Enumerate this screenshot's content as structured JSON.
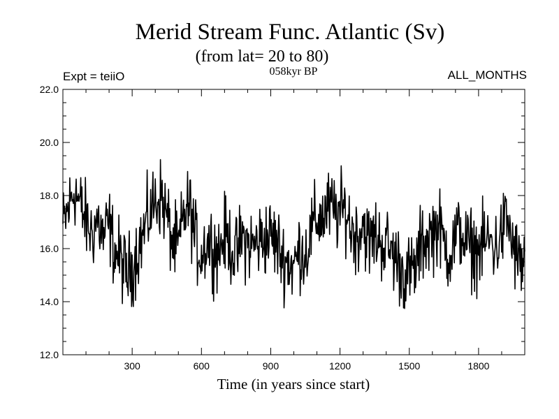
{
  "chart_data": {
    "type": "line",
    "title": "Merid Stream Func. Atlantic (Sv)",
    "subtitle": "(from lat= 20 to 80)",
    "annotations": {
      "left": "Expt = teiiO",
      "center": "058kyr BP",
      "right": "ALL_MONTHS"
    },
    "xlabel": "Time (in years since start)",
    "ylabel": "",
    "xlim": [
      0,
      2000
    ],
    "ylim": [
      12.0,
      22.0
    ],
    "xticks": [
      300,
      600,
      900,
      1200,
      1500,
      1800
    ],
    "xtick_labels": [
      "300",
      "600",
      "900",
      "1200",
      "1500",
      "1800"
    ],
    "yticks": [
      12.0,
      14.0,
      16.0,
      18.0,
      20.0,
      22.0
    ],
    "ytick_labels": [
      "12.0",
      "14.0",
      "16.0",
      "18.0",
      "20.0",
      "22.0"
    ],
    "grid": false,
    "line_color": "#000000",
    "series": [
      {
        "x": [
          0,
          25,
          50,
          75,
          100,
          125,
          150,
          175,
          200,
          225,
          250,
          275,
          300,
          325,
          350,
          375,
          400,
          425,
          450,
          475,
          500,
          525,
          550,
          575,
          600,
          625,
          650,
          675,
          700,
          725,
          750,
          775,
          800,
          825,
          850,
          875,
          900,
          925,
          950,
          975,
          1000,
          1025,
          1050,
          1075,
          1100,
          1125,
          1150,
          1175,
          1200,
          1225,
          1250,
          1275,
          1300,
          1325,
          1350,
          1375,
          1400,
          1425,
          1450,
          1475,
          1500,
          1525,
          1550,
          1575,
          1600,
          1625,
          1650,
          1675,
          1700,
          1725,
          1750,
          1775,
          1800,
          1825,
          1850,
          1875,
          1900,
          1925,
          1950,
          1975,
          2000
        ],
        "values": [
          16.8,
          17.5,
          18.3,
          17.6,
          17.0,
          16.6,
          17.1,
          16.4,
          16.9,
          15.9,
          15.6,
          15.0,
          15.3,
          16.0,
          16.6,
          17.3,
          17.8,
          18.0,
          17.2,
          16.2,
          16.0,
          17.3,
          17.6,
          16.2,
          15.8,
          16.3,
          16.1,
          15.9,
          16.5,
          16.2,
          15.7,
          16.4,
          16.2,
          16.1,
          16.3,
          16.4,
          16.5,
          16.2,
          15.7,
          15.5,
          15.3,
          16.0,
          15.8,
          16.6,
          17.1,
          17.2,
          17.5,
          17.4,
          17.3,
          17.5,
          16.7,
          16.5,
          17.0,
          16.2,
          16.5,
          16.3,
          16.1,
          15.9,
          15.5,
          15.1,
          15.0,
          15.2,
          16.1,
          16.4,
          16.6,
          16.9,
          16.2,
          15.8,
          16.4,
          16.7,
          16.1,
          16.0,
          15.9,
          16.2,
          16.3,
          16.0,
          16.6,
          17.1,
          16.0,
          15.4,
          15.5
        ]
      }
    ]
  }
}
